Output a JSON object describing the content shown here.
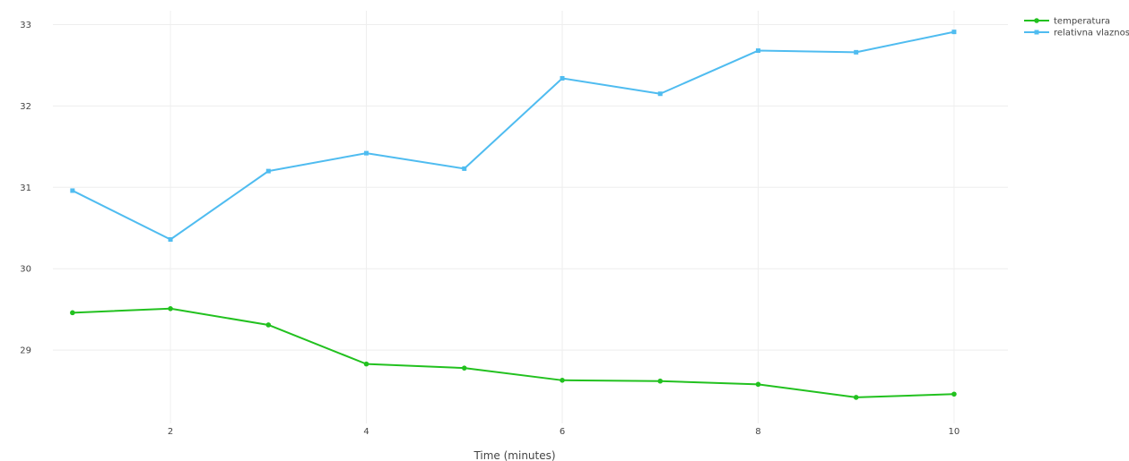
{
  "chart_data": {
    "type": "line",
    "title": "",
    "xlabel": "Time (minutes)",
    "ylabel": "",
    "x": [
      1,
      2,
      3,
      4,
      5,
      6,
      7,
      8,
      9,
      10
    ],
    "xlim": [
      0.8,
      10.55
    ],
    "ylim": [
      28.1,
      33.17
    ],
    "x_ticks": [
      2,
      4,
      6,
      8,
      10
    ],
    "y_ticks": [
      29,
      30,
      31,
      32,
      33
    ],
    "grid": true,
    "legend_position": "top-right",
    "series": [
      {
        "name": "temperatura",
        "color": "#22c11f",
        "marker": "circle",
        "values": [
          29.46,
          29.51,
          29.31,
          28.83,
          28.78,
          28.63,
          28.62,
          28.58,
          28.42,
          28.46
        ]
      },
      {
        "name": "relativna vlaznost",
        "color": "#4fbcf0",
        "marker": "square",
        "values": [
          30.96,
          30.36,
          31.2,
          31.42,
          31.23,
          32.34,
          32.15,
          32.68,
          32.66,
          32.91
        ]
      }
    ]
  }
}
